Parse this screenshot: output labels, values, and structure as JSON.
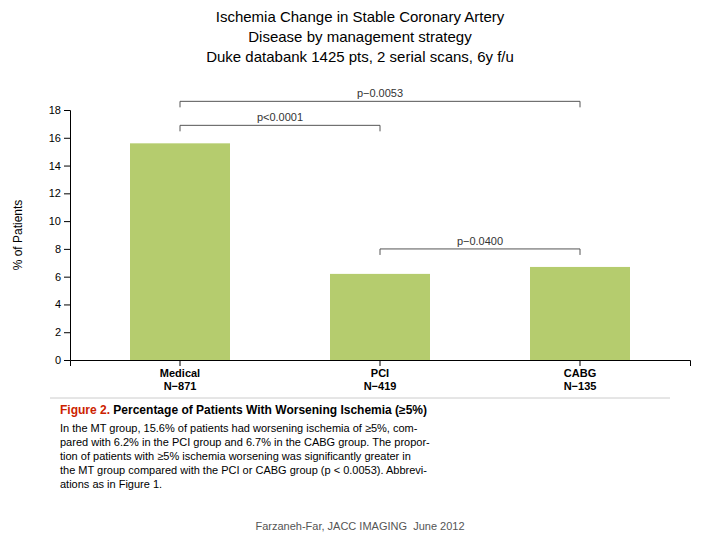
{
  "chart_data": {
    "type": "bar",
    "title": [
      "Ischemia Change in Stable Coronary Artery",
      "Disease by management strategy",
      "Duke databank 1425 pts, 2 serial scans, 6y f/u"
    ],
    "categories": [
      "Medical\nN−871",
      "PCI\nN−419",
      "CABG\nN−135"
    ],
    "values": [
      15.6,
      6.2,
      6.7
    ],
    "color": "#b5cc6e",
    "ylabel": "% of Patients",
    "ylim": [
      0,
      18
    ],
    "yticks": [
      0,
      2,
      4,
      6,
      8,
      10,
      12,
      14,
      16,
      18
    ],
    "grid": false,
    "annotations": [
      {
        "text": "p<0.0001",
        "between": [
          0,
          1
        ]
      },
      {
        "text": "p−0.0053",
        "between": [
          0,
          2
        ]
      },
      {
        "text": "p−0.0400",
        "between": [
          1,
          2
        ]
      }
    ],
    "caption": {
      "label": "Figure 2.",
      "color": "#cc2200",
      "title": " Percentage of Patients With Worsening Ischemia (≥5%)",
      "text": "In the MT group, 15.6% of patients had worsening ischemia of ≥5%, com-\npared with 6.2% in the PCI group and 6.7% in the CABG group. The propor-\ntion of patients with ≥5% ischemia worsening was significantly greater in\nthe MT group compared with the PCI or CABG group (p < 0.0053). Abbrevi-\nations as in Figure 1."
    },
    "footer": "Farzaneh-Far, JACC IMAGING  June 2012"
  }
}
